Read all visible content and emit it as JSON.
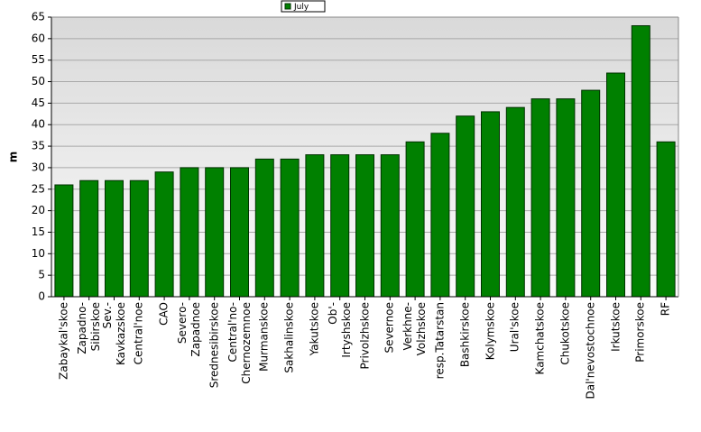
{
  "chart_data": {
    "type": "bar",
    "y_label": "m",
    "categories": [
      "Zabaykal'skoe",
      "Zapadno-\nSibirskoe",
      "Sev.-\nKavkazskoe",
      "Central'noe",
      "CAO",
      "Severo-\nZapadnoe",
      "Srednesibirskoe",
      "Central'no-\nChernozemnoe",
      "Murmanskoe",
      "Sakhalinskoe",
      "Yakutskoe",
      "Ob'-\nIrtyshskoe",
      "Privolzhskoe",
      "Severnoe",
      "Verkhne-\nVolzhskoe",
      "resp.Tatarstan",
      "Bashkirskoe",
      "Kolymskoe",
      "Ural'skoe",
      "Kamchatskoe",
      "Chukotskoe",
      "Dal'nevostochnoe",
      "Irkutskoe",
      "Primorskoe",
      "RF"
    ],
    "series": [
      {
        "name": "July",
        "color": "#008000",
        "values": [
          26,
          27,
          27,
          27,
          29,
          30,
          30,
          30,
          32,
          32,
          33,
          33,
          33,
          33,
          36,
          38,
          42,
          43,
          44,
          46,
          46,
          48,
          52,
          63,
          36
        ]
      }
    ],
    "ylim": [
      0,
      65
    ],
    "yticks": [
      0,
      5,
      10,
      15,
      20,
      25,
      30,
      35,
      40,
      45,
      50,
      55,
      60,
      65
    ],
    "grid": true,
    "legend": "top"
  }
}
